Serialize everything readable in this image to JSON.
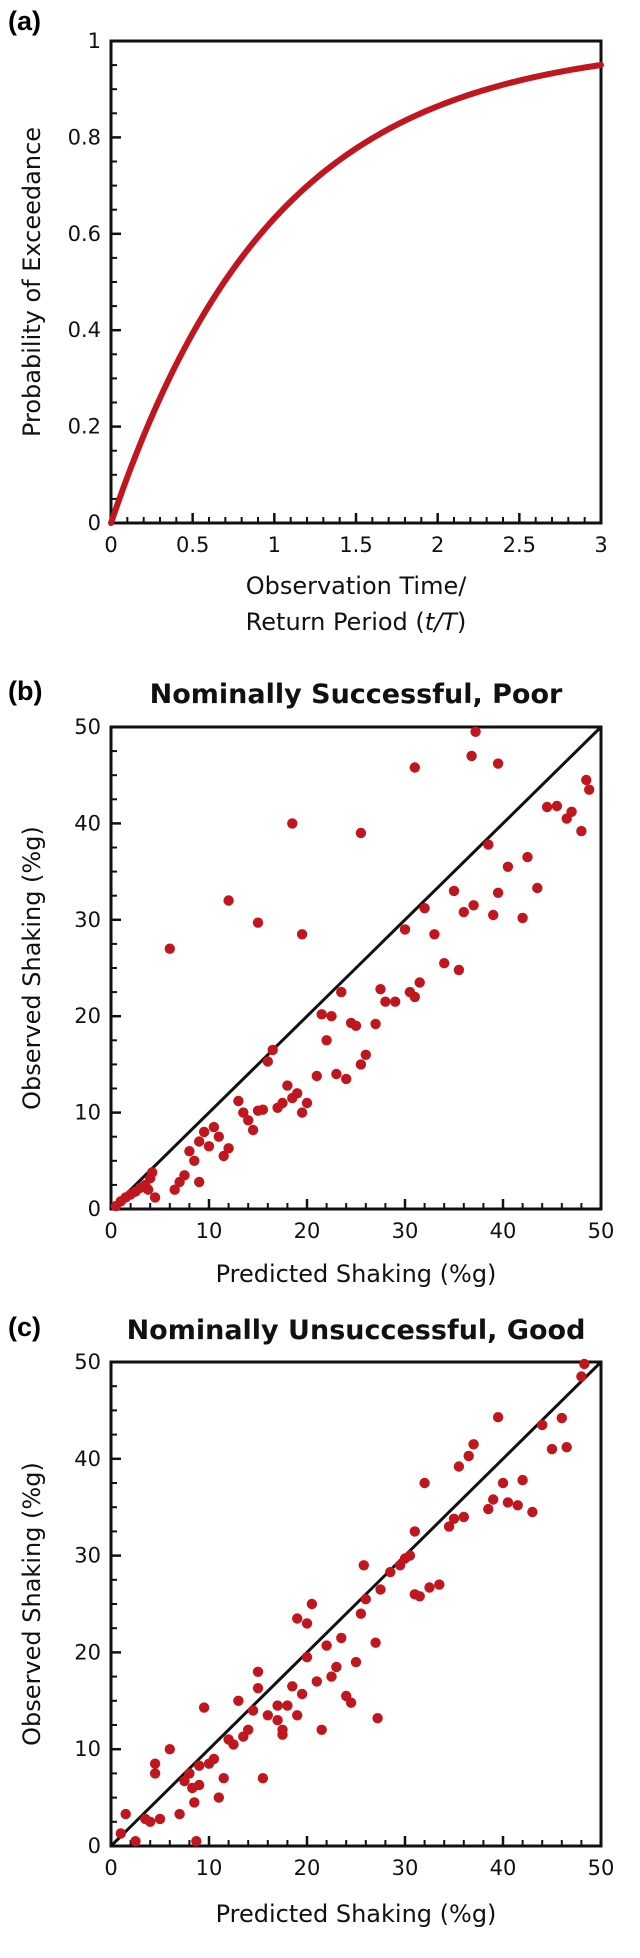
{
  "chart_data": [
    {
      "type": "line",
      "panel_label": "(a)",
      "title": "",
      "xlabel_line1": "Observation Time/",
      "xlabel_line2_prefix": "Return Period (",
      "xlabel_line2_italic": "t/T",
      "xlabel_line2_suffix": ")",
      "ylabel": "Probability of Exceedance",
      "xlim": [
        0,
        3
      ],
      "ylim": [
        0,
        1
      ],
      "xticks": [
        "0",
        "0.5",
        "1",
        "1.5",
        "2",
        "2.5",
        "3"
      ],
      "yticks": [
        "0",
        "0.2",
        "0.4",
        "0.6",
        "0.8",
        "1"
      ],
      "function": "1 - exp(-t/T)",
      "series": [
        {
          "x": [
            0,
            0.1,
            0.2,
            0.3,
            0.4,
            0.5,
            0.6,
            0.7,
            0.8,
            0.9,
            1.0,
            1.1,
            1.2,
            1.3,
            1.4,
            1.5,
            1.6,
            1.7,
            1.8,
            1.9,
            2.0,
            2.1,
            2.2,
            2.3,
            2.4,
            2.5,
            2.6,
            2.7,
            2.8,
            2.9,
            3.0
          ],
          "y": [
            0,
            0.095,
            0.181,
            0.259,
            0.33,
            0.393,
            0.451,
            0.503,
            0.551,
            0.593,
            0.632,
            0.667,
            0.699,
            0.727,
            0.753,
            0.777,
            0.798,
            0.817,
            0.835,
            0.85,
            0.865,
            0.878,
            0.889,
            0.9,
            0.909,
            0.918,
            0.926,
            0.933,
            0.939,
            0.945,
            0.95
          ]
        }
      ],
      "colors": {
        "line": "#c0161d"
      },
      "grid": false
    },
    {
      "type": "scatter",
      "panel_label": "(b)",
      "title": "Nominally Successful, Poor",
      "xlabel": "Predicted Shaking (%g)",
      "ylabel": "Observed Shaking (%g)",
      "xlim": [
        0,
        50
      ],
      "ylim": [
        0,
        50
      ],
      "xticks": [
        "0",
        "10",
        "20",
        "30",
        "40",
        "50"
      ],
      "yticks": [
        "0",
        "10",
        "20",
        "30",
        "40",
        "50"
      ],
      "reference_line": "y = x",
      "points": [
        [
          0.5,
          0.3
        ],
        [
          1,
          0.8
        ],
        [
          1.5,
          1.2
        ],
        [
          2,
          1.5
        ],
        [
          2.5,
          1.8
        ],
        [
          3,
          2.2
        ],
        [
          3.5,
          2.5
        ],
        [
          4,
          3.2
        ],
        [
          4.2,
          3.8
        ],
        [
          3.8,
          2
        ],
        [
          4.5,
          1.2
        ],
        [
          6.5,
          2
        ],
        [
          7,
          2.8
        ],
        [
          7.5,
          3.5
        ],
        [
          8,
          6
        ],
        [
          8.5,
          5
        ],
        [
          9,
          7
        ],
        [
          9.5,
          8
        ],
        [
          9,
          2.8
        ],
        [
          10,
          6.5
        ],
        [
          10.5,
          8.5
        ],
        [
          11,
          7.5
        ],
        [
          11.5,
          5.5
        ],
        [
          12,
          6.3
        ],
        [
          13,
          11.2
        ],
        [
          13.5,
          10
        ],
        [
          14,
          9.2
        ],
        [
          14.5,
          8.2
        ],
        [
          15,
          10.2
        ],
        [
          15.5,
          10.3
        ],
        [
          16,
          15.3
        ],
        [
          16.5,
          16.5
        ],
        [
          17,
          10.5
        ],
        [
          17.5,
          11
        ],
        [
          18,
          12.8
        ],
        [
          18.5,
          11.5
        ],
        [
          19,
          12
        ],
        [
          19.5,
          10
        ],
        [
          20,
          11
        ],
        [
          21,
          13.8
        ],
        [
          21.5,
          20.2
        ],
        [
          22,
          17.5
        ],
        [
          22.5,
          20
        ],
        [
          23,
          14
        ],
        [
          23.5,
          22.5
        ],
        [
          24,
          13.5
        ],
        [
          24.5,
          19.3
        ],
        [
          25,
          19
        ],
        [
          25.5,
          15
        ],
        [
          26,
          16
        ],
        [
          27,
          19.2
        ],
        [
          27.5,
          22.8
        ],
        [
          28,
          21.5
        ],
        [
          29,
          21.5
        ],
        [
          30,
          29
        ],
        [
          30.5,
          22.5
        ],
        [
          31,
          22
        ],
        [
          31.5,
          23.5
        ],
        [
          32,
          31.2
        ],
        [
          33,
          28.5
        ],
        [
          34,
          25.5
        ],
        [
          35,
          33
        ],
        [
          35.5,
          24.8
        ],
        [
          36,
          30.8
        ],
        [
          37,
          31.5
        ],
        [
          38.5,
          37.8
        ],
        [
          39,
          30.5
        ],
        [
          39.5,
          32.8
        ],
        [
          40.5,
          35.5
        ],
        [
          42,
          30.2
        ],
        [
          42.5,
          36.5
        ],
        [
          43.5,
          33.3
        ],
        [
          44.5,
          41.7
        ],
        [
          45.5,
          41.8
        ],
        [
          46.5,
          40.5
        ],
        [
          47,
          41.2
        ],
        [
          48,
          39.2
        ],
        [
          48.5,
          44.5
        ],
        [
          48.8,
          43.5
        ],
        [
          6,
          27
        ],
        [
          12,
          32
        ],
        [
          15,
          29.7
        ],
        [
          18.5,
          40
        ],
        [
          19.5,
          28.5
        ],
        [
          25.5,
          39
        ],
        [
          31,
          45.8
        ],
        [
          36.8,
          47
        ],
        [
          37.2,
          49.5
        ],
        [
          39.5,
          46.2
        ]
      ],
      "colors": {
        "points": "#c0161d",
        "reference_line": "#111111"
      },
      "grid": false
    },
    {
      "type": "scatter",
      "panel_label": "(c)",
      "title": "Nominally Unsuccessful, Good",
      "xlabel": "Predicted Shaking (%g)",
      "ylabel": "Observed Shaking (%g)",
      "xlim": [
        0,
        50
      ],
      "ylim": [
        0,
        50
      ],
      "xticks": [
        "0",
        "10",
        "20",
        "30",
        "40",
        "50"
      ],
      "yticks": [
        "0",
        "10",
        "20",
        "30",
        "40",
        "50"
      ],
      "reference_line": "y = x",
      "points": [
        [
          1,
          1.3
        ],
        [
          1.5,
          3.3
        ],
        [
          2.5,
          0.5
        ],
        [
          3.5,
          2.8
        ],
        [
          4,
          2.5
        ],
        [
          4.5,
          8.5
        ],
        [
          4.5,
          7.5
        ],
        [
          5,
          2.8
        ],
        [
          6,
          10
        ],
        [
          7,
          3.3
        ],
        [
          7.5,
          6.7
        ],
        [
          8,
          7.5
        ],
        [
          8.3,
          6
        ],
        [
          8.5,
          4.5
        ],
        [
          8.7,
          0.5
        ],
        [
          9,
          8.3
        ],
        [
          9.5,
          14.3
        ],
        [
          9,
          6.3
        ],
        [
          10,
          8.5
        ],
        [
          10.5,
          9
        ],
        [
          11,
          5
        ],
        [
          11.5,
          7
        ],
        [
          12,
          11
        ],
        [
          12.5,
          10.5
        ],
        [
          13,
          15
        ],
        [
          13.5,
          11.3
        ],
        [
          14,
          12
        ],
        [
          14.5,
          14
        ],
        [
          15,
          18
        ],
        [
          15,
          16.3
        ],
        [
          15.5,
          7
        ],
        [
          16,
          13.5
        ],
        [
          17,
          13
        ],
        [
          17,
          14.5
        ],
        [
          17.5,
          11.5
        ],
        [
          17.5,
          12
        ],
        [
          18,
          14.5
        ],
        [
          18.5,
          16.5
        ],
        [
          19,
          13.5
        ],
        [
          19,
          23.5
        ],
        [
          19.5,
          15.7
        ],
        [
          20,
          23
        ],
        [
          20,
          19.5
        ],
        [
          20.5,
          25
        ],
        [
          21,
          17
        ],
        [
          21.5,
          12
        ],
        [
          22,
          20.7
        ],
        [
          22.5,
          17.5
        ],
        [
          23,
          18.5
        ],
        [
          23.5,
          21.5
        ],
        [
          24,
          15.5
        ],
        [
          24.5,
          14.8
        ],
        [
          25,
          19
        ],
        [
          25.5,
          24
        ],
        [
          25.8,
          29
        ],
        [
          26,
          25.5
        ],
        [
          27,
          21
        ],
        [
          27.2,
          13.2
        ],
        [
          27.5,
          26.5
        ],
        [
          28.5,
          28.3
        ],
        [
          29.5,
          29
        ],
        [
          30,
          29.7
        ],
        [
          30.5,
          30
        ],
        [
          31,
          32.5
        ],
        [
          31,
          26
        ],
        [
          31.5,
          25.8
        ],
        [
          32,
          37.5
        ],
        [
          32.5,
          26.7
        ],
        [
          33.5,
          27
        ],
        [
          34.5,
          33
        ],
        [
          35,
          33.8
        ],
        [
          35.5,
          39.2
        ],
        [
          36,
          34
        ],
        [
          36.5,
          40.3
        ],
        [
          37,
          41.5
        ],
        [
          38.5,
          34.8
        ],
        [
          39,
          35.8
        ],
        [
          39.5,
          44.3
        ],
        [
          40,
          37.5
        ],
        [
          40.5,
          35.5
        ],
        [
          41.5,
          35.2
        ],
        [
          42,
          37.8
        ],
        [
          43,
          34.5
        ],
        [
          44,
          43.5
        ],
        [
          45,
          41
        ],
        [
          46,
          44.2
        ],
        [
          46.5,
          41.2
        ],
        [
          48,
          48.5
        ],
        [
          48.3,
          49.8
        ]
      ],
      "colors": {
        "points": "#c0161d",
        "reference_line": "#111111"
      },
      "grid": false
    }
  ]
}
